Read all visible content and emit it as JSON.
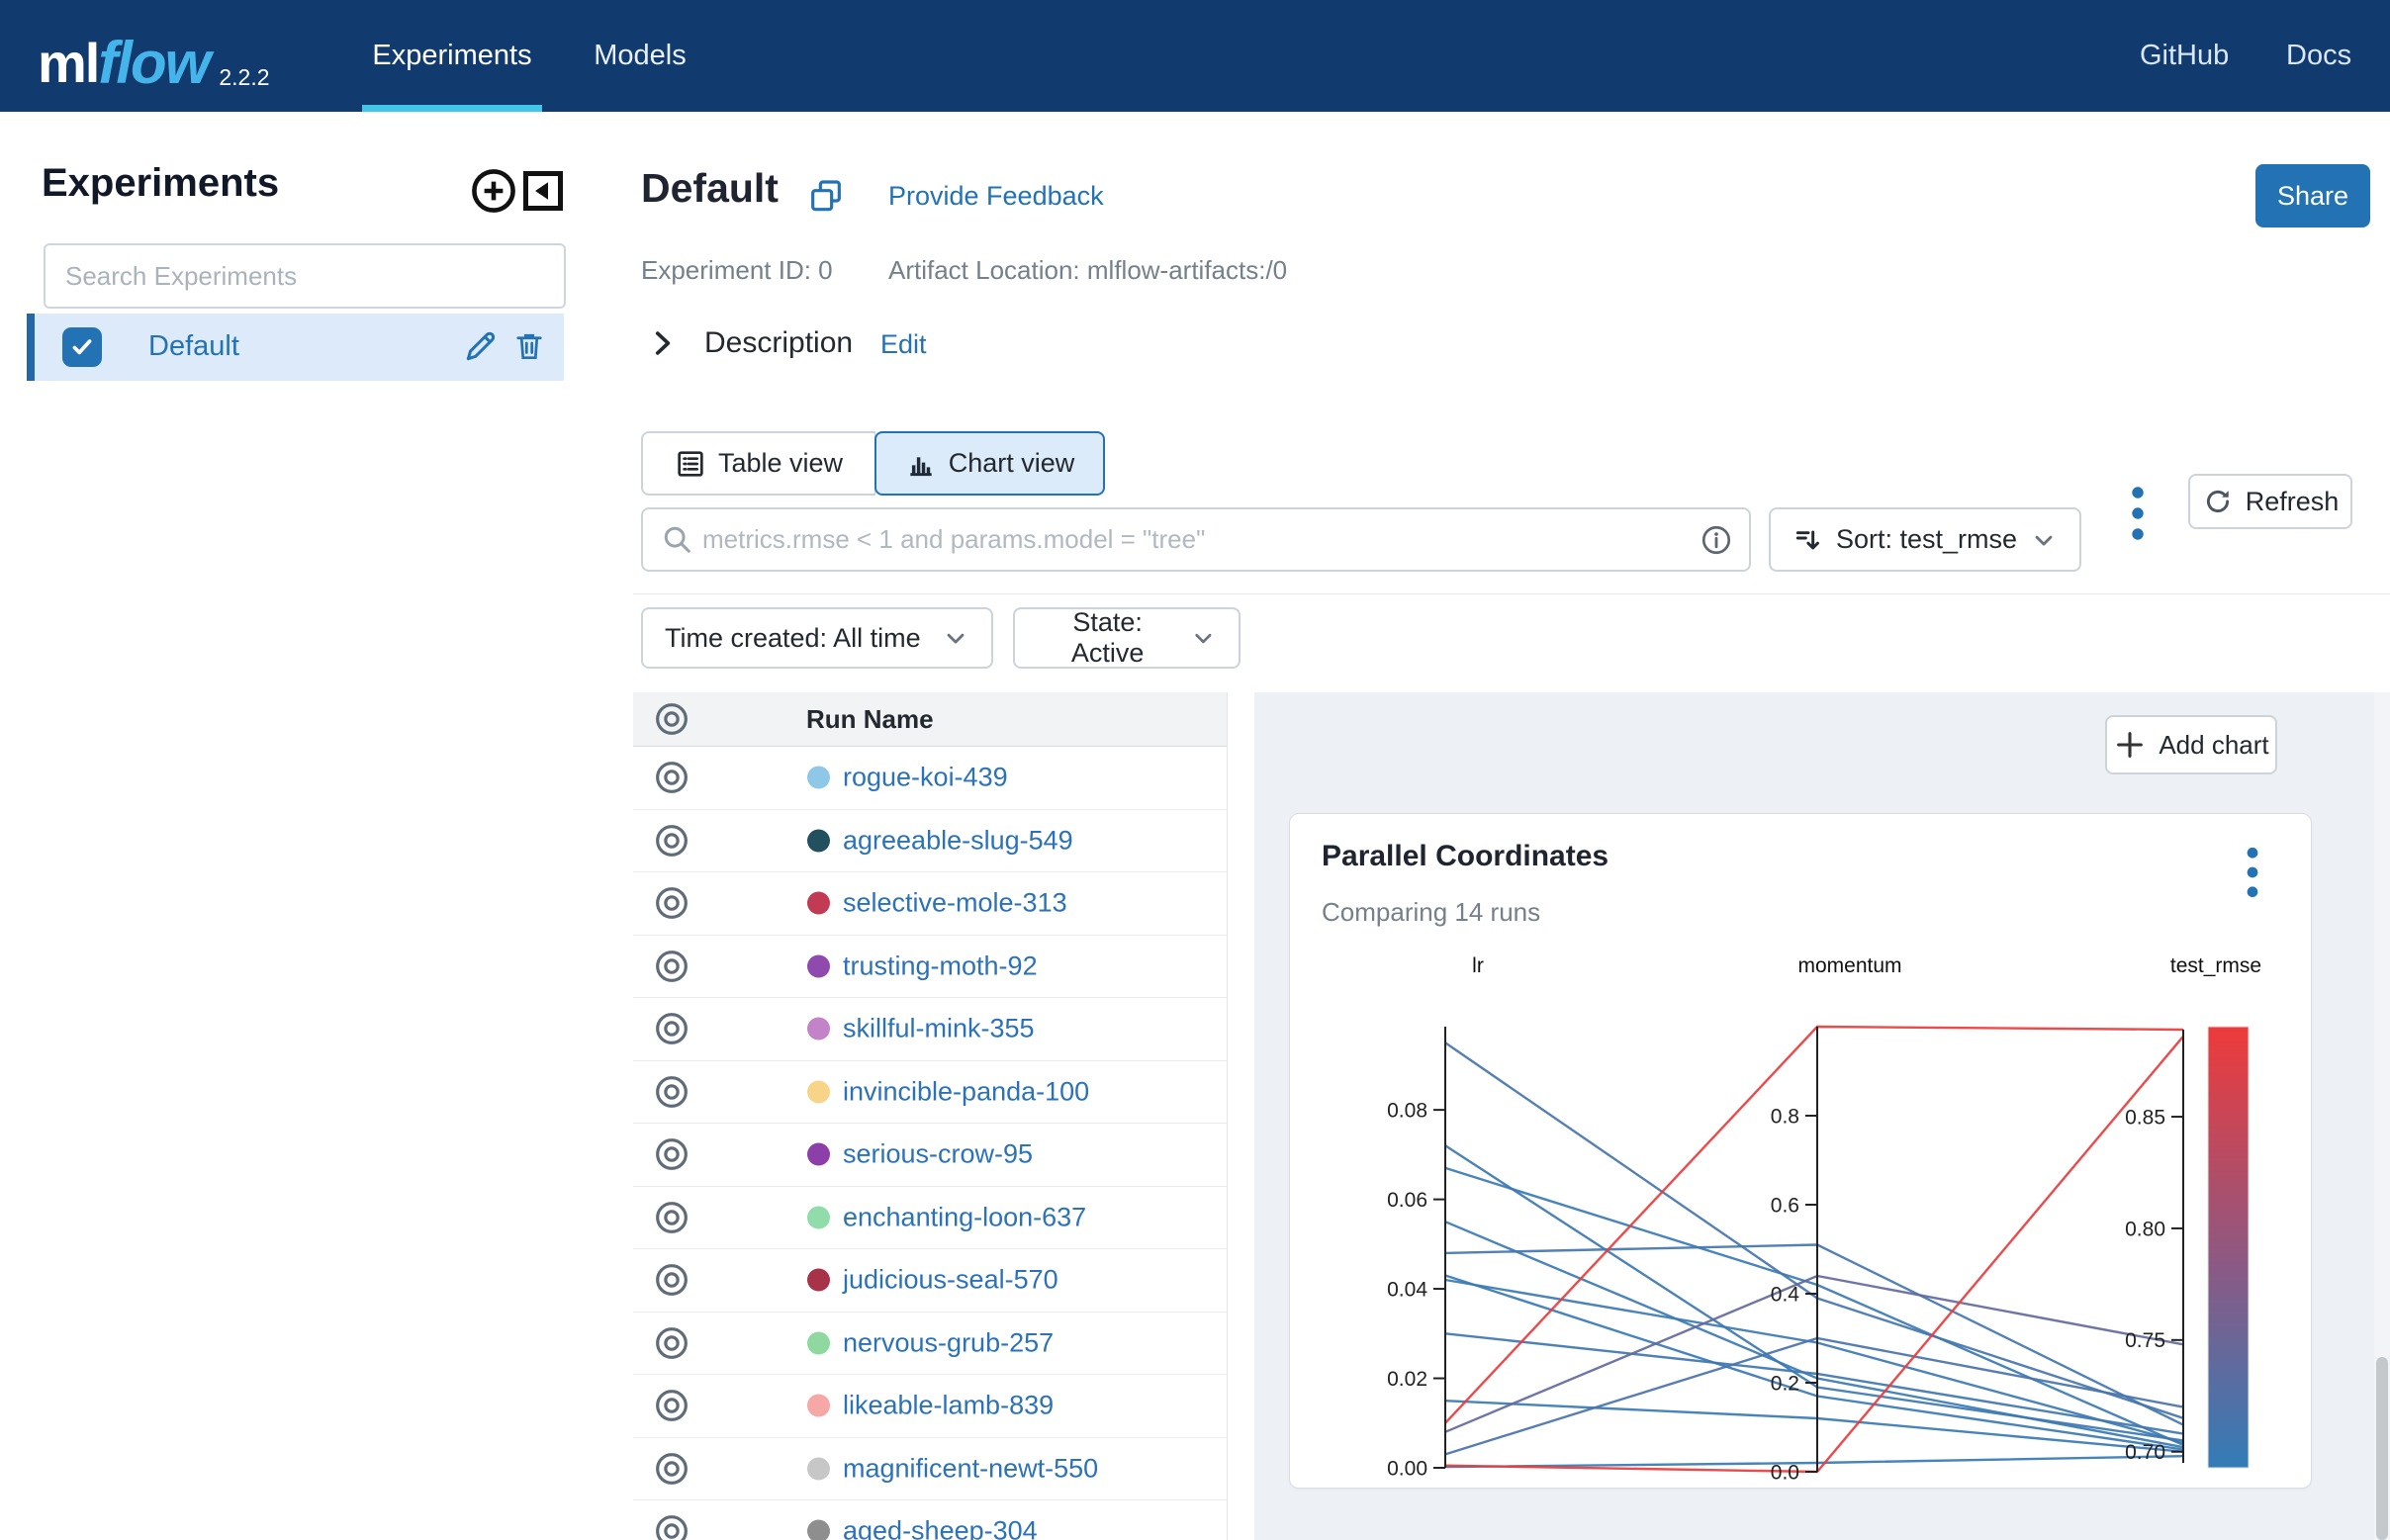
{
  "colors": {
    "navbar_bg": "#113a6e",
    "accent_blue": "#2272b4",
    "tab_underline": "#43c5e8",
    "panel_bg": "#edf1f5",
    "selected_row_bg": "#dceafa"
  },
  "icons": [
    "plus-circle-icon",
    "collapse-panel-icon",
    "checkbox-check-icon",
    "pencil-icon",
    "trash-icon",
    "copy-icon",
    "chevron-right-icon",
    "list-icon",
    "bar-chart-icon",
    "search-icon",
    "info-icon",
    "sort-icon",
    "kebab-menu-icon",
    "refresh-icon",
    "chevron-down-icon",
    "eye-icon",
    "plus-icon"
  ],
  "navbar": {
    "logo_ml": "ml",
    "logo_flow": "flow",
    "version": "2.2.2",
    "tabs": [
      {
        "label": "Experiments",
        "active": true
      },
      {
        "label": "Models",
        "active": false
      }
    ],
    "links": [
      {
        "label": "GitHub"
      },
      {
        "label": "Docs"
      }
    ]
  },
  "sidebar": {
    "title": "Experiments",
    "search_placeholder": "Search Experiments",
    "items": [
      {
        "label": "Default",
        "selected": true
      }
    ]
  },
  "header": {
    "title": "Default",
    "feedback_link": "Provide Feedback",
    "experiment_id": "Experiment ID: 0",
    "artifact_location": "Artifact Location: mlflow-artifacts:/0",
    "share_button": "Share",
    "description_label": "Description",
    "edit_link": "Edit"
  },
  "toolbar": {
    "table_view": "Table view",
    "chart_view": "Chart view",
    "search_placeholder": "metrics.rmse < 1 and params.model = \"tree\"",
    "sort_label": "Sort: test_rmse",
    "refresh_label": "Refresh"
  },
  "filters": {
    "time_created": "Time created: All time",
    "state": "State: Active"
  },
  "runlist": {
    "header": "Run Name",
    "rows": [
      {
        "name": "rogue-koi-439",
        "color": "#8fc7e8"
      },
      {
        "name": "agreeable-slug-549",
        "color": "#23505e"
      },
      {
        "name": "selective-mole-313",
        "color": "#c13b54"
      },
      {
        "name": "trusting-moth-92",
        "color": "#9049ad"
      },
      {
        "name": "skillful-mink-355",
        "color": "#c283c9"
      },
      {
        "name": "invincible-panda-100",
        "color": "#f7d488"
      },
      {
        "name": "serious-crow-95",
        "color": "#8c3fa8"
      },
      {
        "name": "enchanting-loon-637",
        "color": "#90dcaa"
      },
      {
        "name": "judicious-seal-570",
        "color": "#a83248"
      },
      {
        "name": "nervous-grub-257",
        "color": "#8fd8a0"
      },
      {
        "name": "likeable-lamb-839",
        "color": "#f6a8a6"
      },
      {
        "name": "magnificent-newt-550",
        "color": "#c7c7c7"
      },
      {
        "name": "aged-sheep-304",
        "color": "#8e8e8e"
      }
    ]
  },
  "chart_panel": {
    "add_chart": "Add chart"
  },
  "chart_data": {
    "type": "parallel_coordinates",
    "title": "Parallel Coordinates",
    "subtitle": "Comparing 14 runs",
    "num_runs": 14,
    "axes": [
      {
        "name": "lr",
        "range": [
          0,
          0.0986
        ],
        "ticks": [
          0,
          0.02,
          0.04,
          0.06,
          0.08
        ],
        "decimals": 2
      },
      {
        "name": "momentum",
        "range": [
          0,
          1.0
        ],
        "ticks": [
          0,
          0.2,
          0.4,
          0.6,
          0.8
        ],
        "decimals": 1
      },
      {
        "name": "test_rmse",
        "range": [
          0.695,
          0.889
        ],
        "ticks": [
          0.7,
          0.75,
          0.8,
          0.85
        ],
        "decimals": 2
      }
    ],
    "color_metric": "test_rmse",
    "color_range": [
      0.695,
      0.889
    ],
    "colorbar": {
      "top": "#ee3a3a",
      "mid": "#8a5a85",
      "bottom": "#337cb8"
    },
    "runs": [
      [
        0.095,
        0.39,
        0.715
      ],
      [
        0.072,
        0.19,
        0.705
      ],
      [
        0.067,
        0.42,
        0.703
      ],
      [
        0.055,
        0.21,
        0.702
      ],
      [
        0.048,
        0.51,
        0.712
      ],
      [
        0.043,
        0.17,
        0.701
      ],
      [
        0.042,
        0.29,
        0.704
      ],
      [
        0.03,
        0.22,
        0.708
      ],
      [
        0.015,
        0.12,
        0.7
      ],
      [
        0.01,
        1.0,
        0.889
      ],
      [
        0.008,
        0.44,
        0.748
      ],
      [
        0.003,
        0.3,
        0.72
      ],
      [
        0.0005,
        0.0,
        0.886
      ],
      [
        0.0002,
        0.02,
        0.698
      ]
    ]
  }
}
